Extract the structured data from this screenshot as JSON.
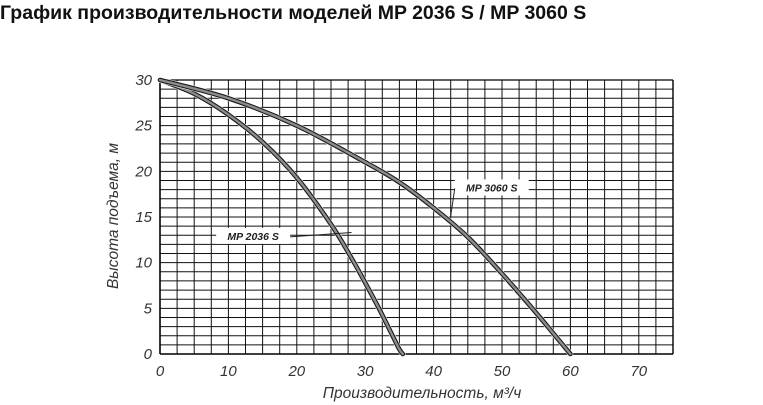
{
  "chart_data": {
    "type": "line",
    "title": "График производительности моделей MP 2036 S / MP 3060 S",
    "xlabel": "Производительность, м³/ч",
    "ylabel": "Высота подъема, м",
    "xlim": [
      0,
      75
    ],
    "ylim": [
      0,
      30
    ],
    "x_ticks": [
      "0",
      "10",
      "20",
      "30",
      "40",
      "50",
      "60",
      "70"
    ],
    "y_ticks": [
      "0",
      "5",
      "10",
      "15",
      "20",
      "25",
      "30"
    ],
    "grid": true,
    "grid_minor_x": 2.5,
    "grid_minor_y": 1,
    "line_color": "#8c8c8c",
    "series": [
      {
        "name": "MP 2036 S",
        "x": [
          0,
          5,
          10,
          15,
          20,
          25,
          28,
          30,
          32,
          34,
          35,
          35.5
        ],
        "y": [
          30,
          28.5,
          26.2,
          23.2,
          19.3,
          14.2,
          10.5,
          7.8,
          5,
          2,
          0.5,
          0
        ]
      },
      {
        "name": "MP 3060 S",
        "x": [
          0,
          10,
          20,
          30,
          35,
          40,
          45,
          50,
          55,
          58,
          60
        ],
        "y": [
          30,
          28,
          25,
          21,
          18.8,
          16,
          12.8,
          8.8,
          4.5,
          1.8,
          0
        ]
      }
    ],
    "annotations": [
      {
        "text": "MP 2036 S",
        "label_x": 8.5,
        "label_y": 12.5,
        "point_x": 28,
        "point_y": 13.3
      },
      {
        "text": "MP 3060 S",
        "label_x": 48.5,
        "label_y": 17.8,
        "point_x": 42.5,
        "point_y": 15.1
      }
    ]
  }
}
